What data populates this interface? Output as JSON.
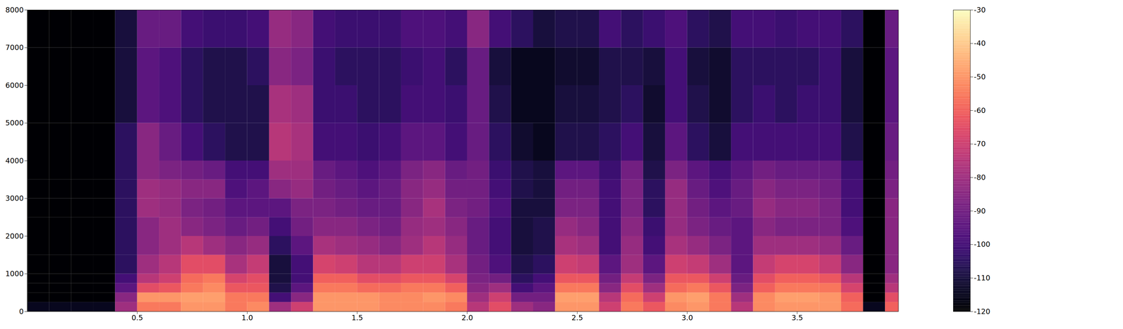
{
  "chart_data": {
    "type": "heatmap",
    "color": "magma",
    "xlim": [
      0,
      3.96
    ],
    "xticks": [
      0.5,
      {
        "value": 1.0,
        "label": "1.0"
      },
      1.5,
      {
        "value": 2.0,
        "label": "2.0"
      },
      2.5,
      {
        "value": 3.0,
        "label": "3.0"
      },
      3.5
    ],
    "ylim": [
      0,
      8000
    ],
    "yticks": [
      0,
      1000,
      2000,
      3000,
      4000,
      5000,
      6000,
      7000,
      8000
    ],
    "color_range": [
      -120,
      -30
    ],
    "color_ticks": [
      -120,
      -110,
      -100,
      -90,
      -80,
      -70,
      -60,
      -50,
      -40,
      -30
    ],
    "time_edges": [
      0,
      0.1,
      0.2,
      0.3,
      0.4,
      0.5,
      0.6,
      0.7,
      0.8,
      0.9,
      1.0,
      1.1,
      1.2,
      1.3,
      1.4,
      1.5,
      1.6,
      1.7,
      1.8,
      1.9,
      2.0,
      2.1,
      2.2,
      2.3,
      2.4,
      2.5,
      2.6,
      2.7,
      2.8,
      2.9,
      3.0,
      3.1,
      3.2,
      3.3,
      3.4,
      3.5,
      3.6,
      3.7,
      3.8,
      3.9,
      3.96
    ],
    "freq_edges": [
      0,
      250,
      500,
      750,
      1000,
      1500,
      2000,
      2500,
      3000,
      3500,
      4000,
      5000,
      6000,
      7000,
      8000
    ],
    "cells": [
      [
        -115,
        -120,
        -120,
        -120,
        -120,
        -120,
        -120,
        -120,
        -120,
        -120,
        -120,
        -120,
        -120,
        -120
      ],
      [
        -115,
        -120,
        -120,
        -120,
        -120,
        -120,
        -120,
        -120,
        -120,
        -120,
        -120,
        -120,
        -120,
        -120
      ],
      [
        -115,
        -120,
        -120,
        -120,
        -120,
        -120,
        -120,
        -120,
        -120,
        -120,
        -120,
        -120,
        -120,
        -120
      ],
      [
        -115,
        -120,
        -120,
        -120,
        -120,
        -120,
        -120,
        -120,
        -120,
        -120,
        -120,
        -120,
        -120,
        -120
      ],
      [
        -80,
        -85,
        -95,
        -100,
        -105,
        -105,
        -105,
        -105,
        -105,
        -105,
        -105,
        -110,
        -110,
        -110
      ],
      [
        -55,
        -50,
        -65,
        -75,
        -80,
        -85,
        -85,
        -80,
        -80,
        -85,
        -85,
        -95,
        -95,
        -92
      ],
      [
        -55,
        -50,
        -62,
        -70,
        -75,
        -80,
        -80,
        -82,
        -82,
        -88,
        -92,
        -98,
        -98,
        -92
      ],
      [
        -50,
        -48,
        -55,
        -58,
        -65,
        -75,
        -85,
        -88,
        -85,
        -90,
        -100,
        -105,
        -105,
        -100
      ],
      [
        -50,
        -48,
        -52,
        -55,
        -65,
        -80,
        -88,
        -90,
        -85,
        -92,
        -105,
        -108,
        -108,
        -102
      ],
      [
        -55,
        -55,
        -62,
        -68,
        -78,
        -85,
        -92,
        -95,
        -98,
        -100,
        -108,
        -108,
        -108,
        -102
      ],
      [
        -52,
        -55,
        -62,
        -65,
        -72,
        -82,
        -90,
        -95,
        -95,
        -100,
        -108,
        -108,
        -105,
        -100
      ],
      [
        -80,
        -100,
        -108,
        -110,
        -110,
        -105,
        -100,
        -95,
        -85,
        -80,
        -75,
        -78,
        -85,
        -82
      ],
      [
        -70,
        -85,
        -95,
        -100,
        -100,
        -95,
        -90,
        -88,
        -82,
        -80,
        -78,
        -80,
        -88,
        -85
      ],
      [
        -50,
        -50,
        -55,
        -60,
        -68,
        -78,
        -85,
        -88,
        -90,
        -92,
        -100,
        -102,
        -102,
        -100
      ],
      [
        -50,
        -50,
        -55,
        -60,
        -70,
        -80,
        -85,
        -90,
        -92,
        -95,
        -100,
        -102,
        -105,
        -102
      ],
      [
        -50,
        -50,
        -58,
        -65,
        -75,
        -82,
        -88,
        -92,
        -95,
        -98,
        -102,
        -105,
        -105,
        -102
      ],
      [
        -52,
        -52,
        -58,
        -65,
        -75,
        -85,
        -90,
        -92,
        -92,
        -95,
        -100,
        -105,
        -105,
        -102
      ],
      [
        -52,
        -52,
        -55,
        -62,
        -70,
        -80,
        -82,
        -85,
        -85,
        -88,
        -95,
        -100,
        -102,
        -98
      ],
      [
        -52,
        -50,
        -55,
        -62,
        -70,
        -75,
        -80,
        -78,
        -82,
        -85,
        -95,
        -100,
        -100,
        -98
      ],
      [
        -55,
        -52,
        -60,
        -68,
        -78,
        -82,
        -85,
        -88,
        -90,
        -92,
        -100,
        -102,
        -105,
        -100
      ],
      [
        -75,
        -80,
        -85,
        -88,
        -90,
        -92,
        -92,
        -90,
        -90,
        -90,
        -92,
        -92,
        -92,
        -85
      ],
      [
        -65,
        -70,
        -80,
        -90,
        -98,
        -100,
        -100,
        -98,
        -100,
        -102,
        -105,
        -108,
        -110,
        -100
      ],
      [
        -80,
        -90,
        -100,
        -105,
        -108,
        -110,
        -110,
        -110,
        -108,
        -108,
        -112,
        -115,
        -115,
        -105
      ],
      [
        -85,
        -90,
        -95,
        -100,
        -105,
        -108,
        -108,
        -110,
        -110,
        -110,
        -115,
        -115,
        -115,
        -110
      ],
      [
        -50,
        -48,
        -55,
        -62,
        -70,
        -78,
        -82,
        -88,
        -90,
        -95,
        -108,
        -110,
        -112,
        -108
      ],
      [
        -50,
        -48,
        -55,
        -62,
        -72,
        -80,
        -85,
        -88,
        -90,
        -95,
        -108,
        -110,
        -112,
        -108
      ],
      [
        -70,
        -75,
        -85,
        -90,
        -95,
        -100,
        -100,
        -100,
        -100,
        -102,
        -105,
        -108,
        -108,
        -100
      ],
      [
        -55,
        -58,
        -65,
        -72,
        -80,
        -82,
        -85,
        -88,
        -88,
        -90,
        -100,
        -105,
        -108,
        -105
      ],
      [
        -62,
        -70,
        -80,
        -88,
        -95,
        -100,
        -102,
        -105,
        -105,
        -108,
        -110,
        -112,
        -110,
        -102
      ],
      [
        -52,
        -50,
        -58,
        -62,
        -70,
        -78,
        -82,
        -82,
        -82,
        -88,
        -95,
        -100,
        -100,
        -98
      ],
      [
        -50,
        -48,
        -55,
        -62,
        -72,
        -82,
        -88,
        -90,
        -92,
        -95,
        -105,
        -108,
        -110,
        -105
      ],
      [
        -55,
        -55,
        -62,
        -70,
        -80,
        -88,
        -92,
        -95,
        -98,
        -100,
        -110,
        -112,
        -112,
        -108
      ],
      [
        -75,
        -80,
        -88,
        -92,
        -95,
        -95,
        -95,
        -92,
        -92,
        -95,
        -100,
        -105,
        -105,
        -100
      ],
      [
        -52,
        -52,
        -60,
        -65,
        -72,
        -80,
        -85,
        -82,
        -85,
        -90,
        -100,
        -102,
        -105,
        -100
      ],
      [
        -50,
        -48,
        -55,
        -60,
        -68,
        -80,
        -88,
        -85,
        -88,
        -92,
        -100,
        -105,
        -105,
        -102
      ],
      [
        -50,
        -48,
        -55,
        -60,
        -68,
        -80,
        -88,
        -85,
        -88,
        -92,
        -100,
        -102,
        -105,
        -100
      ],
      [
        -50,
        -50,
        -56,
        -62,
        -72,
        -82,
        -88,
        -88,
        -90,
        -92,
        -100,
        -102,
        -102,
        -100
      ],
      [
        -58,
        -60,
        -68,
        -75,
        -85,
        -92,
        -98,
        -100,
        -100,
        -102,
        -108,
        -110,
        -110,
        -105
      ],
      [
        -115,
        -120,
        -120,
        -120,
        -120,
        -120,
        -120,
        -120,
        -120,
        -120,
        -120,
        -120,
        -120,
        -120
      ],
      [
        -60,
        -65,
        -75,
        -80,
        -85,
        -85,
        -85,
        -85,
        -88,
        -90,
        -92,
        -95,
        -95,
        -92
      ]
    ]
  }
}
